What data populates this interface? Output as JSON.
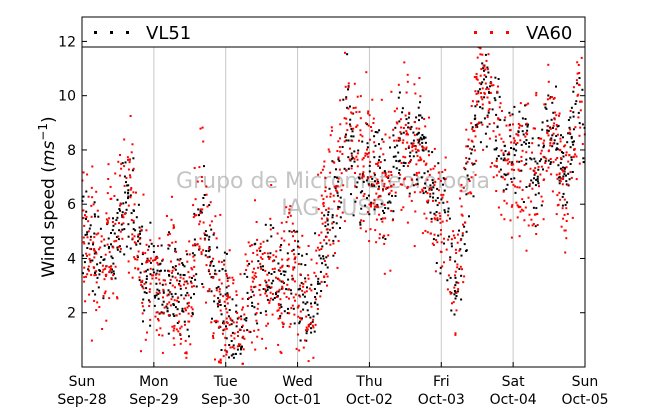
{
  "chart_data": {
    "type": "scatter",
    "title": "",
    "xlabel": "",
    "ylabel": "Wind speed (m s⁻¹)",
    "ylabel_text": "Wind speed (",
    "ylabel_unit": "ms",
    "ylabel_exp": "−1",
    "ylabel_close": ")",
    "ylim": [
      0,
      12.9
    ],
    "xlim": [
      0,
      7
    ],
    "grid": "vertical",
    "legend_position": "top",
    "yticks": [
      2,
      4,
      6,
      8,
      10,
      12
    ],
    "xticks": [
      {
        "x": 0,
        "day": "Sun",
        "date": "Sep-28"
      },
      {
        "x": 1,
        "day": "Mon",
        "date": "Sep-29"
      },
      {
        "x": 2,
        "day": "Tue",
        "date": "Sep-30"
      },
      {
        "x": 3,
        "day": "Wed",
        "date": "Oct-01"
      },
      {
        "x": 4,
        "day": "Thu",
        "date": "Oct-02"
      },
      {
        "x": 5,
        "day": "Fri",
        "date": "Oct-03"
      },
      {
        "x": 6,
        "day": "Sat",
        "date": "Oct-04"
      },
      {
        "x": 7,
        "day": "Sun",
        "date": "Oct-05"
      }
    ],
    "watermark": [
      "Grupo de Micrometeorologia",
      "IAG - USP"
    ],
    "series": [
      {
        "name": "VL51",
        "color": "#000000",
        "trend": [
          [
            0.0,
            5.0
          ],
          [
            0.1,
            5.0
          ],
          [
            0.2,
            4.3
          ],
          [
            0.3,
            3.5
          ],
          [
            0.4,
            4.6
          ],
          [
            0.5,
            4.5
          ],
          [
            0.6,
            6.0
          ],
          [
            0.7,
            6.5
          ],
          [
            0.8,
            4.0
          ],
          [
            0.9,
            3.2
          ],
          [
            1.0,
            3.8
          ],
          [
            1.1,
            2.5
          ],
          [
            1.2,
            3.2
          ],
          [
            1.3,
            3.0
          ],
          [
            1.4,
            2.6
          ],
          [
            1.5,
            2.2
          ],
          [
            1.6,
            4.5
          ],
          [
            1.7,
            5.5
          ],
          [
            1.8,
            3.2
          ],
          [
            1.9,
            2.2
          ],
          [
            2.0,
            2.6
          ],
          [
            2.1,
            1.2
          ],
          [
            2.2,
            1.0
          ],
          [
            2.3,
            2.5
          ],
          [
            2.4,
            2.8
          ],
          [
            2.5,
            3.0
          ],
          [
            2.6,
            3.5
          ],
          [
            2.7,
            3.3
          ],
          [
            2.8,
            3.0
          ],
          [
            2.9,
            3.5
          ],
          [
            3.0,
            3.2
          ],
          [
            3.1,
            2.6
          ],
          [
            3.2,
            1.5
          ],
          [
            3.3,
            4.0
          ],
          [
            3.4,
            5.0
          ],
          [
            3.5,
            5.5
          ],
          [
            3.6,
            6.5
          ],
          [
            3.7,
            9.5
          ],
          [
            3.8,
            7.5
          ],
          [
            3.9,
            6.5
          ],
          [
            4.0,
            7.0
          ],
          [
            4.1,
            7.5
          ],
          [
            4.2,
            6.0
          ],
          [
            4.3,
            6.5
          ],
          [
            4.4,
            8.0
          ],
          [
            4.5,
            8.5
          ],
          [
            4.6,
            8.0
          ],
          [
            4.7,
            8.8
          ],
          [
            4.8,
            7.5
          ],
          [
            4.9,
            5.5
          ],
          [
            5.0,
            5.5
          ],
          [
            5.1,
            5.0
          ],
          [
            5.2,
            2.5
          ],
          [
            5.3,
            4.5
          ],
          [
            5.4,
            7.5
          ],
          [
            5.5,
            9.5
          ],
          [
            5.6,
            10.2
          ],
          [
            5.7,
            9.5
          ],
          [
            5.8,
            8.5
          ],
          [
            5.9,
            8.0
          ],
          [
            6.0,
            8.2
          ],
          [
            6.1,
            8.0
          ],
          [
            6.2,
            8.0
          ],
          [
            6.3,
            7.0
          ],
          [
            6.4,
            8.0
          ],
          [
            6.5,
            9.0
          ],
          [
            6.6,
            8.5
          ],
          [
            6.7,
            7.0
          ],
          [
            6.8,
            7.5
          ],
          [
            6.9,
            10.5
          ],
          [
            7.0,
            8.0
          ]
        ]
      },
      {
        "name": "VA60",
        "color": "#ff0000",
        "trend": [
          [
            0.0,
            5.0
          ],
          [
            0.1,
            4.8
          ],
          [
            0.2,
            4.0
          ],
          [
            0.3,
            3.5
          ],
          [
            0.4,
            4.5
          ],
          [
            0.5,
            4.8
          ],
          [
            0.6,
            6.5
          ],
          [
            0.7,
            6.2
          ],
          [
            0.8,
            3.5
          ],
          [
            0.9,
            3.0
          ],
          [
            1.0,
            3.5
          ],
          [
            1.1,
            2.6
          ],
          [
            1.2,
            3.0
          ],
          [
            1.3,
            3.2
          ],
          [
            1.4,
            2.5
          ],
          [
            1.5,
            2.5
          ],
          [
            1.6,
            5.5
          ],
          [
            1.7,
            6.0
          ],
          [
            1.8,
            3.0
          ],
          [
            1.9,
            2.0
          ],
          [
            2.0,
            2.5
          ],
          [
            2.1,
            1.4
          ],
          [
            2.2,
            1.3
          ],
          [
            2.3,
            2.6
          ],
          [
            2.4,
            3.2
          ],
          [
            2.5,
            3.2
          ],
          [
            2.6,
            3.8
          ],
          [
            2.7,
            3.5
          ],
          [
            2.8,
            3.2
          ],
          [
            2.9,
            3.8
          ],
          [
            3.0,
            3.5
          ],
          [
            3.1,
            2.8
          ],
          [
            3.2,
            2.0
          ],
          [
            3.3,
            5.0
          ],
          [
            3.4,
            5.5
          ],
          [
            3.5,
            6.0
          ],
          [
            3.6,
            7.0
          ],
          [
            3.7,
            10.0
          ],
          [
            3.8,
            8.0
          ],
          [
            3.9,
            7.0
          ],
          [
            4.0,
            7.5
          ],
          [
            4.1,
            7.0
          ],
          [
            4.2,
            6.5
          ],
          [
            4.3,
            7.0
          ],
          [
            4.4,
            8.5
          ],
          [
            4.5,
            8.2
          ],
          [
            4.6,
            7.5
          ],
          [
            4.7,
            8.5
          ],
          [
            4.8,
            7.0
          ],
          [
            4.9,
            6.0
          ],
          [
            5.0,
            5.8
          ],
          [
            5.1,
            4.5
          ],
          [
            5.2,
            3.0
          ],
          [
            5.3,
            5.5
          ],
          [
            5.4,
            8.0
          ],
          [
            5.5,
            10.0
          ],
          [
            5.6,
            10.5
          ],
          [
            5.7,
            9.0
          ],
          [
            5.8,
            8.2
          ],
          [
            5.9,
            7.5
          ],
          [
            6.0,
            8.0
          ],
          [
            6.1,
            7.5
          ],
          [
            6.2,
            7.0
          ],
          [
            6.3,
            6.5
          ],
          [
            6.4,
            7.5
          ],
          [
            6.5,
            8.5
          ],
          [
            6.6,
            8.0
          ],
          [
            6.7,
            6.5
          ],
          [
            6.8,
            7.0
          ],
          [
            6.9,
            10.0
          ],
          [
            7.0,
            7.8
          ]
        ]
      }
    ]
  }
}
